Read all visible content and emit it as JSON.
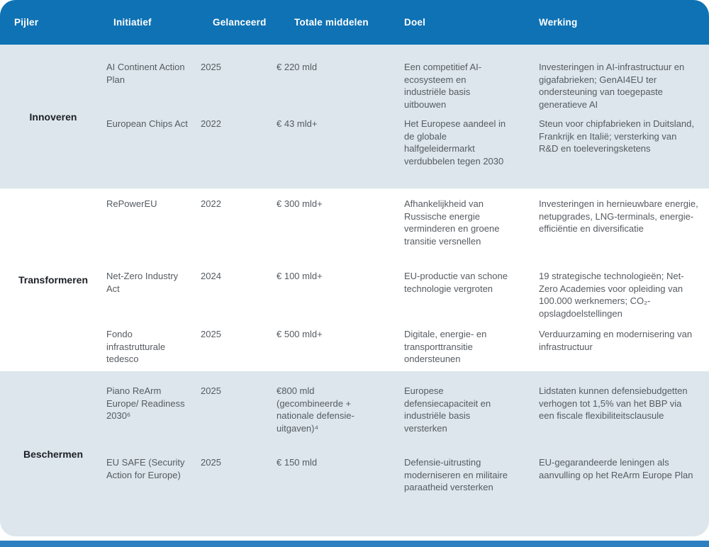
{
  "colors": {
    "header_blue": "#0f72b4",
    "light_row_bg": "#dce6ec",
    "white_row_bg": "#ffffff",
    "bottom_bar_blue": "#2e7fc0",
    "body_text": "#565b61",
    "pillar_text": "#1d2026"
  },
  "table": {
    "columns": [
      "Pijler",
      "Initiatief",
      "Gelanceerd",
      "Totale middelen",
      "Doel",
      "Werking"
    ],
    "groups": [
      {
        "pillar": "Innoveren",
        "rows": [
          {
            "initiative": "AI Continent Action Plan",
            "launched": "2025",
            "budget": "€ 220 mld",
            "goal": "Een competitief AI-ecosysteem en industriële basis uitbouwen",
            "mechanism": "Investeringen in AI-infrastructuur en gigafabrieken; GenAI4EU ter ondersteuning van toegepaste generatieve AI"
          },
          {
            "initiative": "European Chips Act",
            "launched": "2022",
            "budget": "€ 43 mld+",
            "goal": "Het Europese aandeel in de globale halfgeleidermarkt verdubbelen tegen 2030",
            "mechanism": "Steun voor chipfabrieken in Duitsland, Frankrijk en Italië; versterking van R&D en toeleveringsketens"
          }
        ]
      },
      {
        "pillar": "Transformeren",
        "rows": [
          {
            "initiative": "RePowerEU",
            "launched": "2022",
            "budget": "€ 300 mld+",
            "goal": "Afhankelijkheid van Russische energie verminderen en groene transitie versnellen",
            "mechanism": "Investeringen in hernieuwbare energie, netupgrades, LNG-terminals, energie-efficiëntie en diversificatie"
          },
          {
            "initiative": "Net-Zero Industry Act",
            "launched": "2024",
            "budget": "€ 100 mld+",
            "goal": "EU-productie van schone technologie vergroten",
            "mechanism": "19 strategische technologieën; Net-Zero Academies voor opleiding van 100.000 werknemers; CO₂-opslagdoelstellingen"
          },
          {
            "initiative": "Fondo infrastrutturale tedesco",
            "launched": "2025",
            "budget": "€ 500 mld+",
            "goal": "Digitale, energie- en transporttransitie ondersteunen",
            "mechanism": "Verduurzaming en modernisering van infrastructuur"
          }
        ]
      },
      {
        "pillar": "Beschermen",
        "rows": [
          {
            "initiative": "Piano ReArm Europe/ Readiness 2030⁶",
            "launched": "2025",
            "budget": "€800 mld (gecombineerde + nationale defensie-uitgaven)⁴",
            "goal": "Europese defensiecapaciteit en industriële basis versterken",
            "mechanism": "Lidstaten kunnen defensiebudgetten verhogen tot 1,5% van het BBP via een fiscale flexibiliteitsclausule"
          },
          {
            "initiative": "EU SAFE (Security Action for Europe)",
            "launched": "2025",
            "budget": "€ 150 mld",
            "goal": "Defensie-uitrusting moderniseren en militaire paraatheid versterken",
            "mechanism": "EU-gegarandeerde leningen als aanvulling op het ReArm Europe Plan"
          }
        ]
      }
    ]
  }
}
